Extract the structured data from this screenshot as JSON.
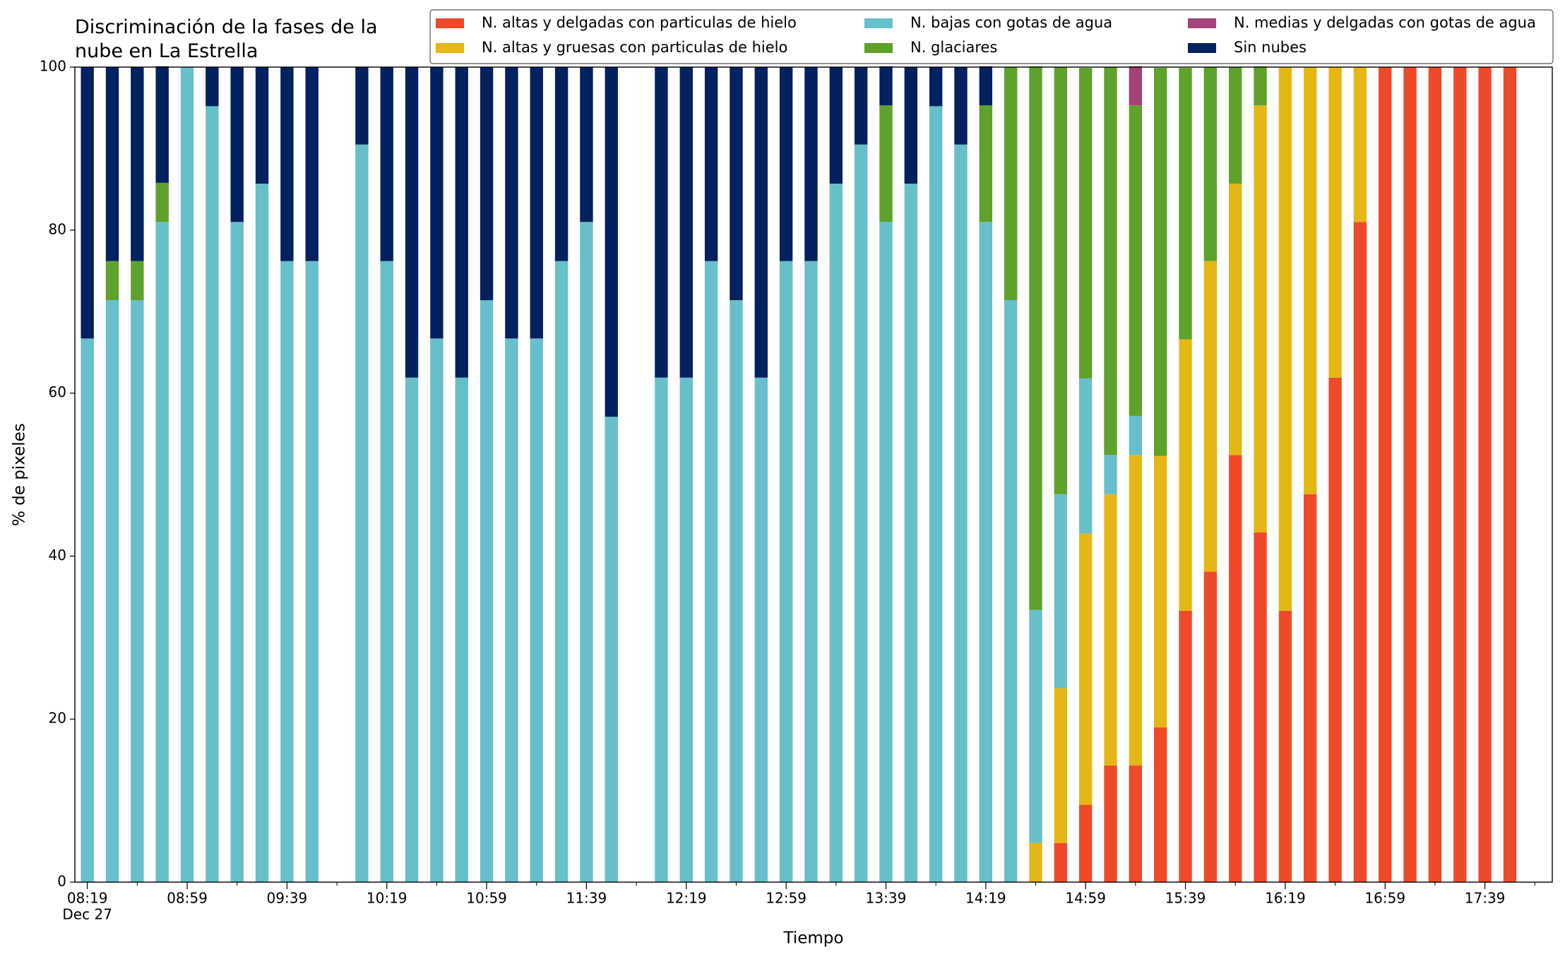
{
  "chart_data": {
    "type": "stacked_bar",
    "title": "Discriminación de la fases de la nube en La Estrella",
    "x_label": "Tiempo",
    "y_label": "% de pixeles",
    "x": [
      "08:19",
      "08:29",
      "08:39",
      "08:49",
      "08:59",
      "09:09",
      "09:19",
      "09:29",
      "09:39",
      "09:49",
      "10:09",
      "10:19",
      "10:29",
      "10:39",
      "10:49",
      "10:59",
      "11:09",
      "11:19",
      "11:29",
      "11:39",
      "11:49",
      "12:09",
      "12:19",
      "12:29",
      "12:39",
      "12:49",
      "12:59",
      "13:09",
      "13:19",
      "13:29",
      "13:39",
      "13:49",
      "13:59",
      "14:09",
      "14:19",
      "14:29",
      "14:39",
      "14:49",
      "14:59",
      "15:09",
      "15:19",
      "15:29",
      "15:39",
      "15:49",
      "15:59",
      "16:09",
      "16:19",
      "16:29",
      "16:39",
      "16:49",
      "16:59",
      "17:09",
      "17:19",
      "17:29",
      "17:39",
      "17:49"
    ],
    "series": [
      {
        "name": "N. altas y delgadas con particulas de hielo",
        "color": "#ee4a2a",
        "values": [
          0,
          0,
          0,
          0,
          0,
          0,
          0,
          0,
          0,
          0,
          0,
          0,
          0,
          0,
          0,
          0,
          0,
          0,
          0,
          0,
          0,
          0,
          0,
          0,
          0,
          0,
          0,
          0,
          0,
          0,
          0,
          0,
          0,
          0,
          0,
          0,
          0,
          4.8,
          9.5,
          14.3,
          14.3,
          19.0,
          33.3,
          38.1,
          52.4,
          42.9,
          33.3,
          47.6,
          61.9,
          81.0,
          100,
          100,
          100,
          100,
          100,
          100
        ]
      },
      {
        "name": "N. altas y gruesas con particulas de hielo",
        "color": "#e5b716",
        "values": [
          0,
          0,
          0,
          0,
          0,
          0,
          0,
          0,
          0,
          0,
          0,
          0,
          0,
          0,
          0,
          0,
          0,
          0,
          0,
          0,
          0,
          0,
          0,
          0,
          0,
          0,
          0,
          0,
          0,
          0,
          0,
          0,
          0,
          0,
          0,
          0,
          4.8,
          19.0,
          33.3,
          33.3,
          38.1,
          33.3,
          33.3,
          38.1,
          33.3,
          52.4,
          66.7,
          52.4,
          38.1,
          19.0,
          0,
          0,
          0,
          0,
          0,
          0
        ]
      },
      {
        "name": "N. bajas con gotas de agua",
        "color": "#67bfca",
        "values": [
          66.7,
          71.4,
          71.4,
          81.0,
          100,
          95.2,
          81.0,
          85.7,
          76.2,
          76.2,
          90.5,
          76.2,
          61.9,
          66.7,
          61.9,
          71.4,
          66.7,
          66.7,
          76.2,
          81.0,
          57.1,
          61.9,
          61.9,
          76.2,
          71.4,
          61.9,
          76.2,
          76.2,
          85.7,
          90.5,
          81.0,
          85.7,
          95.2,
          90.5,
          81.0,
          71.4,
          28.6,
          23.8,
          19.0,
          4.8,
          4.8,
          0,
          0,
          0,
          0,
          0,
          0,
          0,
          0,
          0,
          0,
          0,
          0,
          0,
          0,
          0
        ]
      },
      {
        "name": "N. glaciares",
        "color": "#5ea12b",
        "values": [
          0,
          4.8,
          4.8,
          4.8,
          0,
          0,
          0,
          0,
          0,
          0,
          0,
          0,
          0,
          0,
          0,
          0,
          0,
          0,
          0,
          0,
          0,
          0,
          0,
          0,
          0,
          0,
          0,
          0,
          0,
          0,
          14.3,
          0,
          0,
          0,
          14.3,
          28.6,
          66.7,
          52.4,
          38.1,
          47.6,
          38.1,
          47.6,
          33.3,
          23.8,
          14.3,
          4.8,
          0,
          0,
          0,
          0,
          0,
          0,
          0,
          0,
          0,
          0
        ]
      },
      {
        "name": "N. medias y delgadas con gotas de agua",
        "color": "#a4417a",
        "values": [
          0,
          0,
          0,
          0,
          0,
          0,
          0,
          0,
          0,
          0,
          0,
          0,
          0,
          0,
          0,
          0,
          0,
          0,
          0,
          0,
          0,
          0,
          0,
          0,
          0,
          0,
          0,
          0,
          0,
          0,
          0,
          0,
          0,
          0,
          0,
          0,
          0,
          0,
          0,
          0,
          4.8,
          0,
          0,
          0,
          0,
          0,
          0,
          0,
          0,
          0,
          0,
          0,
          0,
          0,
          0,
          0
        ]
      },
      {
        "name": "Sin nubes",
        "color": "#03205f",
        "values": [
          33.3,
          23.8,
          23.8,
          14.3,
          0,
          4.8,
          19.0,
          14.3,
          23.8,
          23.8,
          9.5,
          23.8,
          38.1,
          33.3,
          38.1,
          28.6,
          33.3,
          33.3,
          23.8,
          19.0,
          42.9,
          38.1,
          38.1,
          23.8,
          28.6,
          38.1,
          23.8,
          23.8,
          14.3,
          9.5,
          4.8,
          14.3,
          4.8,
          9.5,
          4.8,
          0,
          0,
          0,
          0,
          0,
          0,
          0,
          0,
          0,
          0,
          0,
          0,
          0,
          0,
          0,
          0,
          0,
          0,
          0,
          0,
          0
        ]
      }
    ],
    "xlim": [
      "08:14",
      "18:06"
    ],
    "xticks": [
      "08:19",
      "08:59",
      "09:39",
      "10:19",
      "10:59",
      "11:39",
      "12:19",
      "12:59",
      "13:39",
      "14:19",
      "14:59",
      "15:39",
      "16:19",
      "16:59",
      "17:39"
    ],
    "xtick_sublabel": "Dec 27",
    "xminorticks": [
      "08:39",
      "09:19",
      "09:59",
      "10:39",
      "11:19",
      "11:59",
      "12:39",
      "13:19",
      "13:59",
      "14:39",
      "15:19",
      "15:59",
      "16:39",
      "17:19",
      "17:59"
    ],
    "ylim": [
      0,
      100
    ],
    "yticks": [
      0,
      20,
      40,
      60,
      80,
      100
    ],
    "legend": "top-right"
  }
}
